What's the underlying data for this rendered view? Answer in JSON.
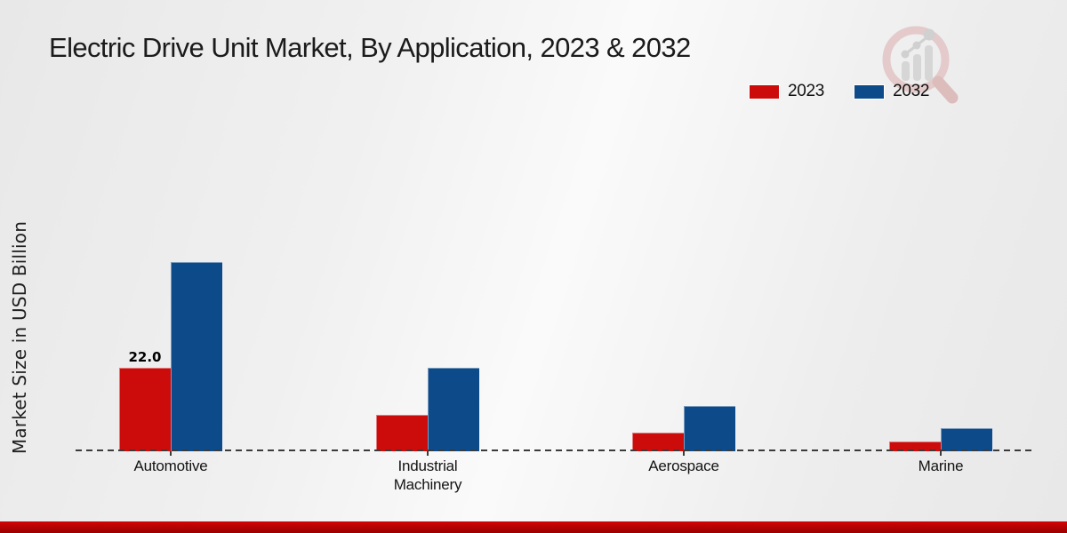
{
  "title": "Electric Drive Unit Market, By Application, 2023 & 2032",
  "accent_colors": {
    "red": "#cc0b0b",
    "blue": "#0d4a89",
    "bottom_bar": "#b30202"
  },
  "chart_data": {
    "type": "bar",
    "title": "Electric Drive Unit Market, By Application, 2023 & 2032",
    "ylabel": "Market Size in USD Billion",
    "xlabel": "",
    "categories": [
      "Automotive",
      "Industrial Machinery",
      "Aerospace",
      "Marine"
    ],
    "series": [
      {
        "name": "2023",
        "color": "#cc0b0b",
        "values": [
          22.0,
          9.5,
          5.0,
          2.5
        ],
        "bar_labels": [
          "22.0",
          "",
          "",
          ""
        ]
      },
      {
        "name": "2032",
        "color": "#0d4a89",
        "values": [
          50.0,
          22.0,
          12.0,
          6.0
        ],
        "bar_labels": [
          "",
          "",
          "",
          ""
        ]
      }
    ],
    "ylim": [
      0,
      55
    ],
    "grid": false,
    "y_tick_labels_visible": false,
    "baseline_style": "dashed",
    "legend_position": "upper right"
  }
}
